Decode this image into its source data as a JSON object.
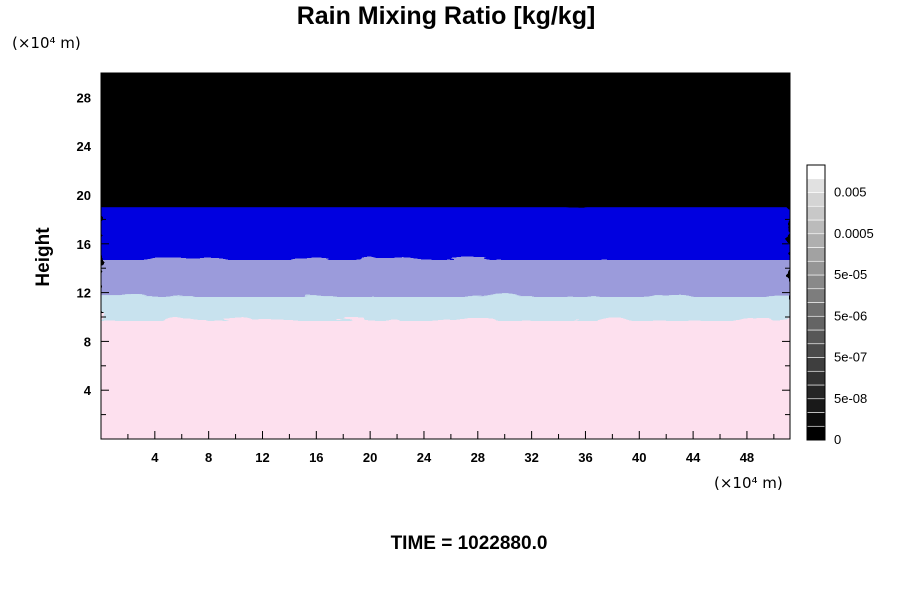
{
  "chart_data": {
    "type": "heatmap",
    "title": "Rain Mixing Ratio [kg/kg]",
    "ylabel": "Height",
    "x_unit": "(×10⁴ m)",
    "y_unit": "(×10⁴ m)",
    "xlim": [
      0,
      51.2
    ],
    "ylim": [
      0,
      30
    ],
    "x_ticks": [
      4,
      8,
      12,
      16,
      20,
      24,
      28,
      32,
      36,
      40,
      44,
      48
    ],
    "y_ticks": [
      4,
      8,
      12,
      16,
      20,
      24,
      28
    ],
    "colorbar": {
      "scale": "log",
      "labels": [
        "0",
        "5e-08",
        "5e-07",
        "5e-06",
        "5e-05",
        "0.0005",
        "0.005"
      ],
      "levels": 20,
      "colors": {
        "low": "#000000",
        "high": "#ffffff"
      }
    },
    "field_bands": [
      {
        "from_height": 0,
        "to_height": 10,
        "color": "#fde0ee"
      },
      {
        "from_height": 10,
        "to_height": 12,
        "color": "#c8e2ee"
      },
      {
        "from_height": 12,
        "to_height": 15,
        "color": "#9b9bdb"
      },
      {
        "from_height": 15,
        "to_height": 19,
        "color": "#0000e0"
      },
      {
        "from_height": 19,
        "to_height": 30,
        "color": "#000000"
      }
    ],
    "grid": false
  },
  "footer": {
    "time_label": "TIME = 1022880.0"
  }
}
